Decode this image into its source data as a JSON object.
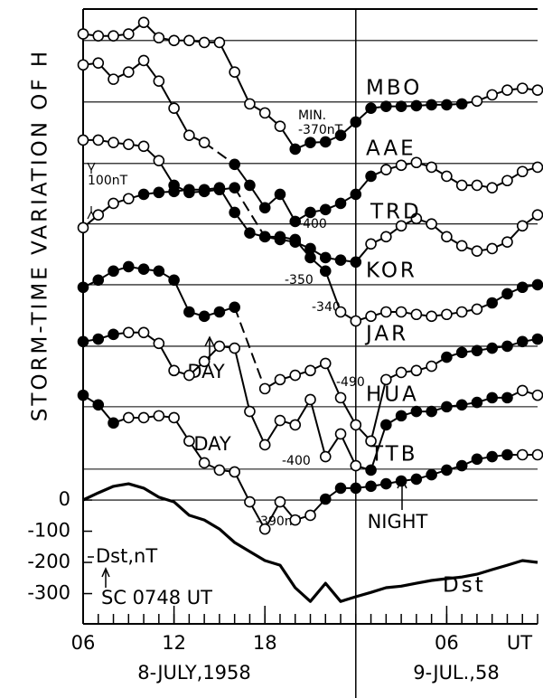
{
  "chart_data": {
    "type": "line",
    "ylabel": "STORM-TIME VARIATION OF H",
    "xlabels": [
      "8-JULY,1958",
      "9-JUL.,58"
    ],
    "x_unit_label": "UT",
    "x": [
      0,
      1,
      2,
      3,
      4,
      5,
      6,
      7,
      8,
      9,
      10,
      11,
      12,
      13,
      14,
      15,
      16,
      17,
      18,
      19,
      20,
      21,
      22,
      23,
      24,
      25,
      26,
      27,
      28,
      29,
      30
    ],
    "xlim": [
      0,
      30
    ],
    "xticks": [
      {
        "value": 0,
        "label": "06"
      },
      {
        "value": 6,
        "label": "12"
      },
      {
        "value": 12,
        "label": "18"
      },
      {
        "value": 24,
        "label": "06"
      }
    ],
    "xminorticks": [
      0,
      1,
      2,
      3,
      4,
      5,
      6,
      7,
      8,
      9,
      10,
      11,
      12,
      13,
      14,
      15,
      16,
      17,
      18,
      19,
      20,
      21,
      22,
      23,
      24,
      25,
      26,
      27,
      28,
      29,
      30
    ],
    "day_divider": 18,
    "ylim": [
      -397,
      1574
    ],
    "yticks": [
      0,
      -100,
      -200,
      -300
    ],
    "baselines": [
      1473,
      1276,
      1079,
      885,
      690,
      493,
      299,
      99
    ],
    "series": [
      {
        "name": "MBO",
        "color": "#000000",
        "values": [
          1494,
          1488,
          1488,
          1494,
          1531,
          1482,
          1473,
          1473,
          1467,
          1467,
          1372,
          1270,
          1241,
          1198,
          1125,
          1146,
          1148,
          1169,
          1212,
          1256,
          1262,
          1262,
          1264,
          1267,
          1267,
          1270,
          1279,
          1299,
          1314,
          1320,
          1314
        ],
        "filled": [
          false,
          false,
          false,
          false,
          false,
          false,
          false,
          false,
          false,
          false,
          false,
          false,
          false,
          false,
          true,
          true,
          true,
          true,
          true,
          true,
          true,
          true,
          true,
          true,
          true,
          true,
          false,
          false,
          false,
          false,
          false
        ]
      },
      {
        "name": "AAE",
        "color": "#000000",
        "values": [
          1395,
          1401,
          1349,
          1372,
          1409,
          1343,
          1256,
          1169,
          1146,
          null,
          1076,
          1009,
          937,
          980,
          893,
          922,
          931,
          951,
          980,
          1038,
          1059,
          1073,
          1082,
          1067,
          1038,
          1009,
          1009,
          1001,
          1024,
          1053,
          1067
        ],
        "filled": [
          false,
          false,
          false,
          false,
          false,
          false,
          false,
          false,
          false,
          false,
          true,
          true,
          true,
          true,
          true,
          true,
          true,
          true,
          true,
          true,
          false,
          false,
          false,
          false,
          false,
          false,
          false,
          false,
          false,
          false,
          false
        ]
      },
      {
        "name": "TRD",
        "color": "#000000",
        "values": [
          1154,
          1154,
          1146,
          1140,
          1134,
          1088,
          1009,
          986,
          989,
          995,
          1001,
          null,
          844,
          835,
          827,
          806,
          777,
          769,
          763,
          821,
          844,
          879,
          902,
          885,
          844,
          815,
          798,
          806,
          827,
          879,
          914
        ],
        "filled": [
          false,
          false,
          false,
          false,
          false,
          false,
          true,
          true,
          true,
          true,
          true,
          false,
          true,
          true,
          true,
          true,
          true,
          true,
          true,
          false,
          false,
          false,
          false,
          false,
          false,
          false,
          false,
          false,
          false,
          false,
          false
        ]
      },
      {
        "name": "KOR",
        "color": "#000000",
        "values": [
          873,
          914,
          951,
          966,
          980,
          986,
          989,
          995,
          995,
          1001,
          922,
          856,
          844,
          844,
          835,
          777,
          734,
          603,
          574,
          589,
          603,
          603,
          595,
          589,
          595,
          603,
          612,
          632,
          661,
          682,
          690
        ],
        "filled": [
          false,
          false,
          false,
          false,
          true,
          true,
          true,
          true,
          true,
          true,
          true,
          true,
          true,
          true,
          true,
          true,
          true,
          false,
          false,
          false,
          false,
          false,
          false,
          false,
          false,
          false,
          false,
          true,
          true,
          true,
          true
        ]
      },
      {
        "name": "JAR",
        "color": "#000000",
        "values": [
          682,
          705,
          734,
          748,
          740,
          734,
          705,
          603,
          589,
          603,
          618,
          null,
          357,
          386,
          400,
          415,
          438,
          328,
          241,
          189,
          386,
          409,
          415,
          429,
          458,
          473,
          479,
          487,
          493,
          508,
          516
        ],
        "filled": [
          true,
          true,
          true,
          true,
          true,
          true,
          true,
          true,
          true,
          true,
          true,
          false,
          false,
          false,
          false,
          false,
          false,
          false,
          false,
          false,
          false,
          false,
          false,
          false,
          true,
          true,
          true,
          true,
          true,
          true,
          true
        ]
      },
      {
        "name": "HUA",
        "color": "#000000",
        "values": [
          508,
          516,
          531,
          537,
          537,
          502,
          415,
          400,
          444,
          493,
          487,
          284,
          177,
          255,
          241,
          322,
          139,
          212,
          110,
          96,
          241,
          270,
          284,
          284,
          299,
          305,
          313,
          328,
          328,
          351,
          336
        ],
        "filled": [
          true,
          true,
          true,
          false,
          false,
          false,
          false,
          false,
          false,
          false,
          false,
          false,
          false,
          false,
          false,
          false,
          false,
          false,
          false,
          true,
          true,
          true,
          true,
          true,
          true,
          true,
          true,
          true,
          true,
          false,
          false
        ]
      },
      {
        "name": "TTB",
        "color": "#000000",
        "values": [
          336,
          305,
          247,
          264,
          264,
          270,
          264,
          189,
          119,
          96,
          90,
          -6,
          -93,
          -6,
          -64,
          -49,
          3,
          38,
          38,
          44,
          52,
          61,
          67,
          81,
          96,
          110,
          131,
          139,
          145,
          145,
          145
        ],
        "filled": [
          true,
          true,
          true,
          false,
          false,
          false,
          false,
          false,
          false,
          false,
          false,
          false,
          false,
          false,
          false,
          false,
          true,
          true,
          true,
          true,
          true,
          true,
          true,
          true,
          true,
          true,
          true,
          true,
          true,
          false,
          false
        ]
      },
      {
        "name": "Dst",
        "color": "#000000",
        "values": [
          0,
          23,
          44,
          52,
          38,
          9,
          -6,
          -49,
          -64,
          -93,
          -136,
          -165,
          -194,
          -209,
          -281,
          -325,
          -267,
          -325,
          -310,
          -296,
          -281,
          -276,
          -267,
          -258,
          -252,
          -247,
          -238,
          -223,
          -209,
          -194,
          -200
        ]
      }
    ],
    "annotations": [
      "MIN.",
      "-370nT",
      "-400",
      "-350",
      "-340",
      "-490",
      "-400",
      "-390nT",
      "DAY",
      "DAY",
      "NIGHT",
      "Dst,nT",
      "SC 0748 UT",
      "100nT"
    ]
  }
}
